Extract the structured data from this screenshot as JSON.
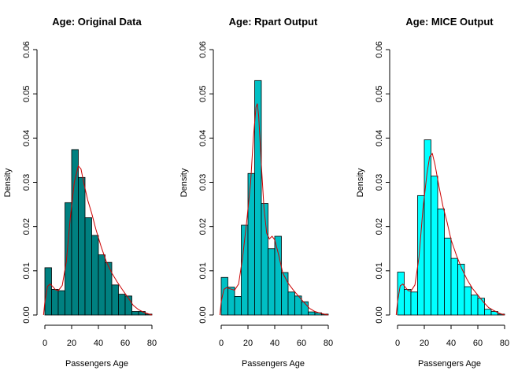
{
  "chart_data": [
    {
      "type": "bar",
      "title": "Age: Original Data",
      "xlabel": "Passengers Age",
      "ylabel": "Density",
      "bar_color": "#008080",
      "density_color": "#cc0000",
      "xlim": [
        0,
        80
      ],
      "ylim": [
        0,
        0.06
      ],
      "x_ticks": [
        "0",
        "20",
        "40",
        "60",
        "80"
      ],
      "y_ticks": [
        "0.00",
        "0.01",
        "0.02",
        "0.03",
        "0.04",
        "0.05",
        "0.06"
      ],
      "bin_edges": [
        0,
        5,
        10,
        15,
        20,
        25,
        30,
        35,
        40,
        45,
        50,
        55,
        60,
        65,
        70,
        75,
        80
      ],
      "values": [
        0.0107,
        0.0058,
        0.0055,
        0.0254,
        0.0374,
        0.0311,
        0.022,
        0.018,
        0.0136,
        0.0119,
        0.0068,
        0.0047,
        0.0043,
        0.0008,
        0.0008,
        0.0002
      ],
      "density": [
        [
          -1,
          0
        ],
        [
          0,
          0.003
        ],
        [
          2,
          0.0065
        ],
        [
          4,
          0.007
        ],
        [
          6,
          0.0064
        ],
        [
          8,
          0.0057
        ],
        [
          10,
          0.0055
        ],
        [
          13,
          0.0067
        ],
        [
          16,
          0.012
        ],
        [
          19,
          0.022
        ],
        [
          22,
          0.03
        ],
        [
          25,
          0.0337
        ],
        [
          27,
          0.033
        ],
        [
          29,
          0.03
        ],
        [
          32,
          0.026
        ],
        [
          35,
          0.023
        ],
        [
          38,
          0.0195
        ],
        [
          42,
          0.0155
        ],
        [
          46,
          0.012
        ],
        [
          50,
          0.0095
        ],
        [
          54,
          0.0075
        ],
        [
          58,
          0.0057
        ],
        [
          62,
          0.004
        ],
        [
          66,
          0.0022
        ],
        [
          70,
          0.0012
        ],
        [
          74,
          0.0006
        ],
        [
          80,
          0
        ]
      ]
    },
    {
      "type": "bar",
      "title": "Age: Rpart Output",
      "xlabel": "Passengers Age",
      "ylabel": "Density",
      "bar_color": "#00BFC4",
      "density_color": "#cc0000",
      "xlim": [
        0,
        80
      ],
      "ylim": [
        0,
        0.06
      ],
      "x_ticks": [
        "0",
        "20",
        "40",
        "60",
        "80"
      ],
      "y_ticks": [
        "0.00",
        "0.01",
        "0.02",
        "0.03",
        "0.04",
        "0.05",
        "0.06"
      ],
      "bin_edges": [
        0,
        5,
        10,
        15,
        20,
        25,
        30,
        35,
        40,
        45,
        50,
        55,
        60,
        65,
        70,
        75,
        80
      ],
      "values": [
        0.0085,
        0.0063,
        0.0042,
        0.0203,
        0.032,
        0.053,
        0.0252,
        0.015,
        0.0178,
        0.0096,
        0.0052,
        0.0043,
        0.003,
        0.0007,
        0.0005,
        0.0002
      ],
      "density": [
        [
          -1,
          0
        ],
        [
          0,
          0.003
        ],
        [
          2,
          0.0058
        ],
        [
          4,
          0.0062
        ],
        [
          6,
          0.006
        ],
        [
          8,
          0.0058
        ],
        [
          10,
          0.0056
        ],
        [
          13,
          0.007
        ],
        [
          16,
          0.013
        ],
        [
          19,
          0.021
        ],
        [
          22,
          0.03
        ],
        [
          24,
          0.04
        ],
        [
          26,
          0.047
        ],
        [
          27,
          0.0478
        ],
        [
          28,
          0.045
        ],
        [
          30,
          0.034
        ],
        [
          32,
          0.024
        ],
        [
          34,
          0.0185
        ],
        [
          36,
          0.0172
        ],
        [
          38,
          0.0178
        ],
        [
          40,
          0.017
        ],
        [
          43,
          0.0135
        ],
        [
          46,
          0.0095
        ],
        [
          50,
          0.0072
        ],
        [
          54,
          0.0056
        ],
        [
          58,
          0.0042
        ],
        [
          62,
          0.0028
        ],
        [
          66,
          0.0015
        ],
        [
          70,
          0.0008
        ],
        [
          74,
          0.0004
        ],
        [
          80,
          0
        ]
      ]
    },
    {
      "type": "bar",
      "title": "Age: MICE Output",
      "xlabel": "Passengers Age",
      "ylabel": "Density",
      "bar_color": "#00FFFF",
      "density_color": "#cc0000",
      "xlim": [
        0,
        80
      ],
      "ylim": [
        0,
        0.06
      ],
      "x_ticks": [
        "0",
        "20",
        "40",
        "60",
        "80"
      ],
      "y_ticks": [
        "0.00",
        "0.01",
        "0.02",
        "0.03",
        "0.04",
        "0.05",
        "0.06"
      ],
      "bin_edges": [
        0,
        5,
        10,
        15,
        20,
        25,
        30,
        35,
        40,
        45,
        50,
        55,
        60,
        65,
        70,
        75,
        80
      ],
      "values": [
        0.0097,
        0.0058,
        0.0052,
        0.027,
        0.0396,
        0.0314,
        0.024,
        0.0174,
        0.0128,
        0.0115,
        0.0064,
        0.0045,
        0.0038,
        0.0013,
        0.0008,
        0.0002
      ],
      "density": [
        [
          -1,
          0
        ],
        [
          0,
          0.003
        ],
        [
          2,
          0.0066
        ],
        [
          4,
          0.007
        ],
        [
          6,
          0.0062
        ],
        [
          8,
          0.0055
        ],
        [
          10,
          0.0054
        ],
        [
          13,
          0.0068
        ],
        [
          16,
          0.013
        ],
        [
          19,
          0.024
        ],
        [
          22,
          0.032
        ],
        [
          24,
          0.0358
        ],
        [
          26,
          0.0365
        ],
        [
          28,
          0.034
        ],
        [
          31,
          0.029
        ],
        [
          34,
          0.0245
        ],
        [
          37,
          0.021
        ],
        [
          40,
          0.017
        ],
        [
          44,
          0.0135
        ],
        [
          48,
          0.0105
        ],
        [
          52,
          0.008
        ],
        [
          56,
          0.006
        ],
        [
          60,
          0.0045
        ],
        [
          64,
          0.003
        ],
        [
          68,
          0.0017
        ],
        [
          72,
          0.001
        ],
        [
          76,
          0.0004
        ],
        [
          80,
          0
        ]
      ]
    }
  ]
}
